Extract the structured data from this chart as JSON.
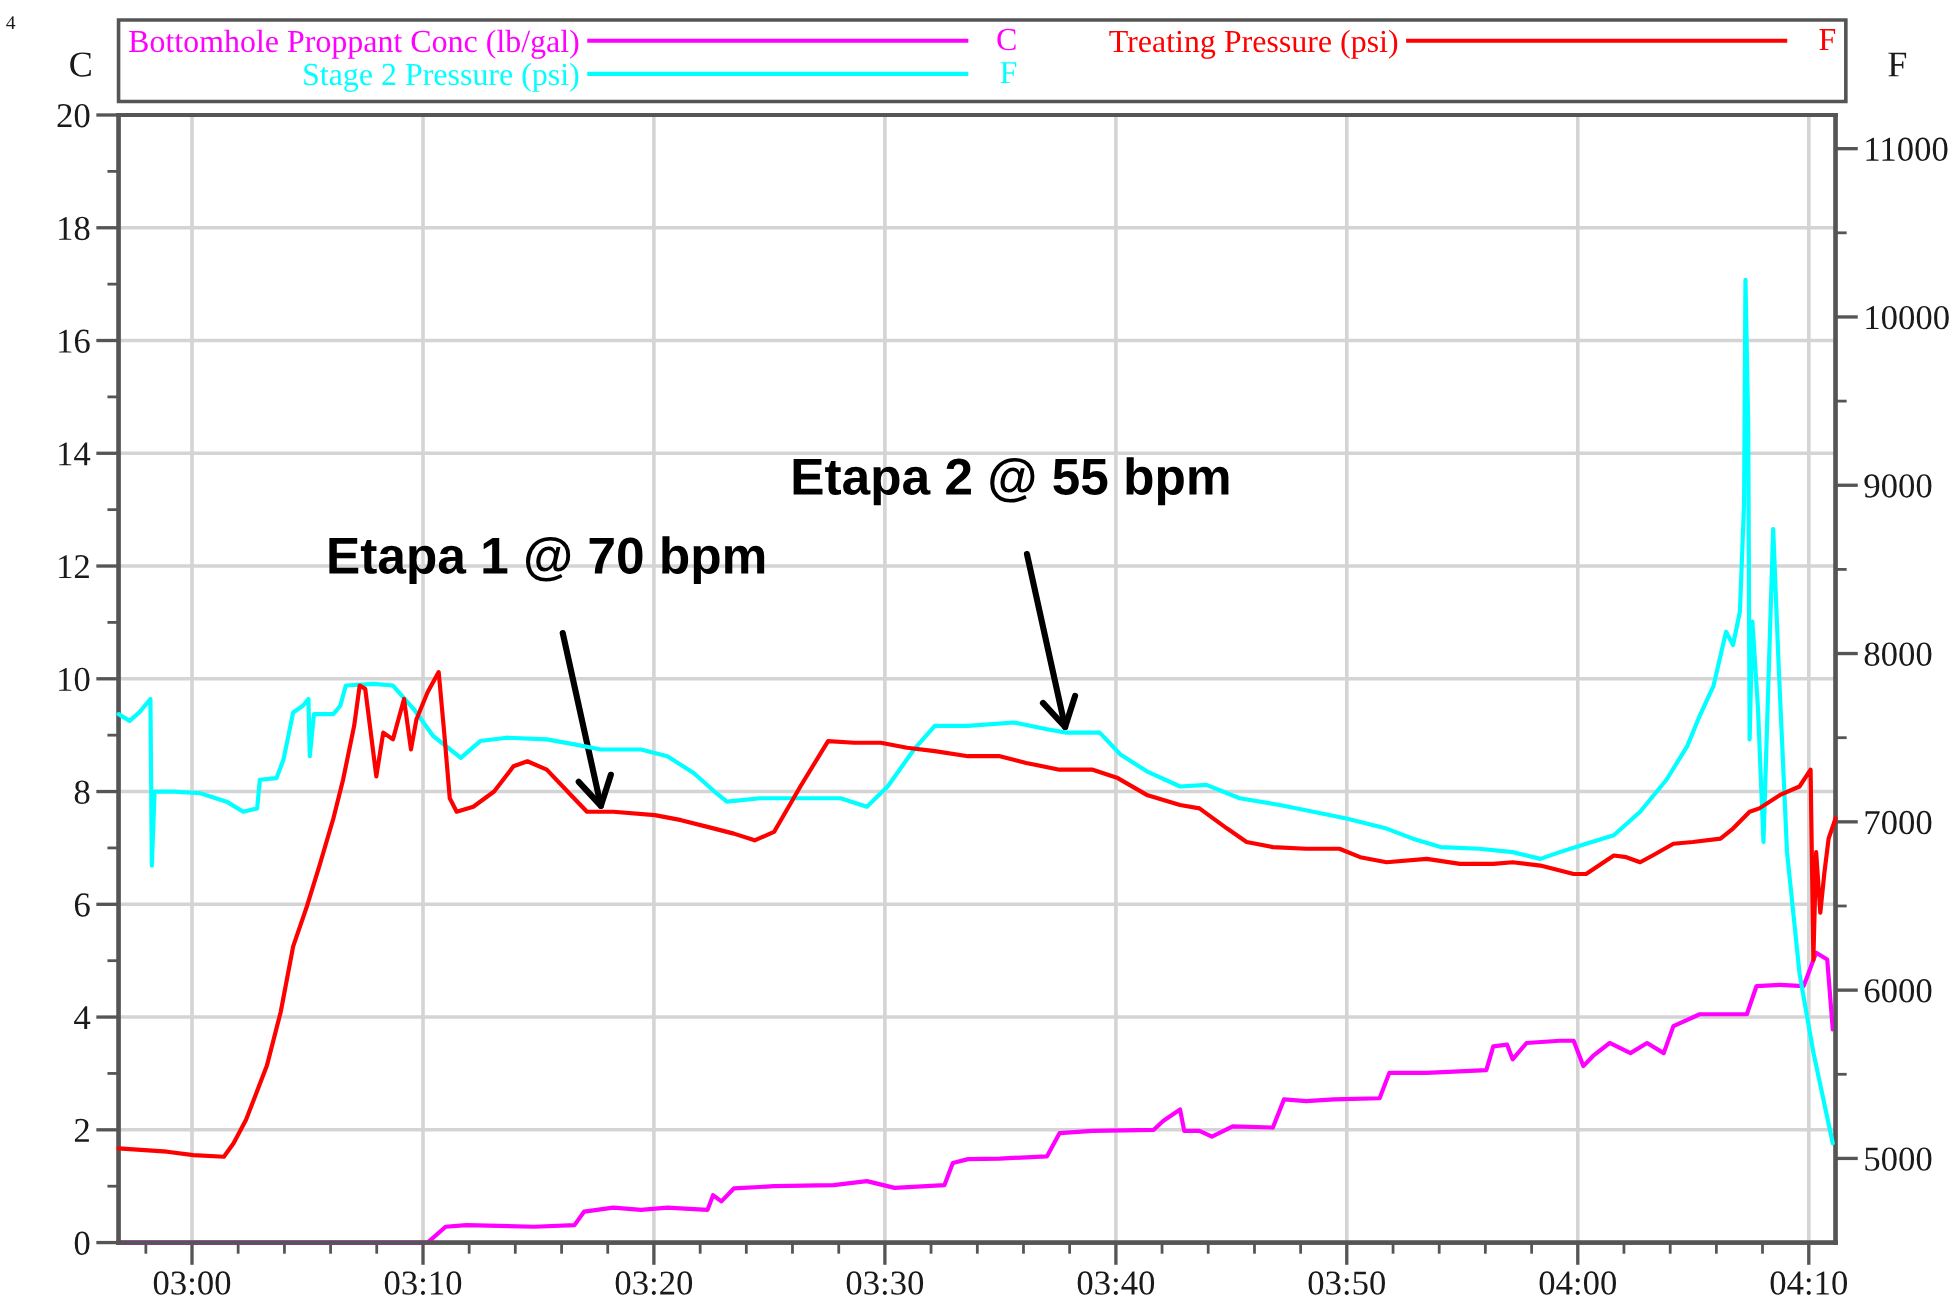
{
  "chart_data": {
    "type": "line",
    "ylabel": "C",
    "y2label": "F",
    "xlim": [
      2.947,
      4.186
    ],
    "xticks": [
      {
        "value": 2.9667,
        "label": null
      },
      {
        "value": 3.0,
        "label": "03:00"
      },
      {
        "value": 3.0333,
        "label": null
      },
      {
        "value": 3.0667,
        "label": null
      },
      {
        "value": 3.1,
        "label": null
      },
      {
        "value": 3.1333,
        "label": null
      },
      {
        "value": 3.1667,
        "label": "03:10"
      },
      {
        "value": 3.2,
        "label": null
      },
      {
        "value": 3.2333,
        "label": null
      },
      {
        "value": 3.2667,
        "label": null
      },
      {
        "value": 3.3,
        "label": null
      },
      {
        "value": 3.3333,
        "label": "03:20"
      },
      {
        "value": 3.3667,
        "label": null
      },
      {
        "value": 3.4,
        "label": null
      },
      {
        "value": 3.4333,
        "label": null
      },
      {
        "value": 3.4667,
        "label": null
      },
      {
        "value": 3.5,
        "label": "03:30"
      },
      {
        "value": 3.5333,
        "label": null
      },
      {
        "value": 3.5667,
        "label": null
      },
      {
        "value": 3.6,
        "label": null
      },
      {
        "value": 3.6333,
        "label": null
      },
      {
        "value": 3.6667,
        "label": "03:40"
      },
      {
        "value": 3.7,
        "label": null
      },
      {
        "value": 3.7333,
        "label": null
      },
      {
        "value": 3.7667,
        "label": null
      },
      {
        "value": 3.8,
        "label": null
      },
      {
        "value": 3.8333,
        "label": "03:50"
      },
      {
        "value": 3.8667,
        "label": null
      },
      {
        "value": 3.9,
        "label": null
      },
      {
        "value": 3.9333,
        "label": null
      },
      {
        "value": 3.9667,
        "label": null
      },
      {
        "value": 4.0,
        "label": "04:00"
      },
      {
        "value": 4.0333,
        "label": null
      },
      {
        "value": 4.0667,
        "label": null
      },
      {
        "value": 4.1,
        "label": null
      },
      {
        "value": 4.1333,
        "label": null
      },
      {
        "value": 4.1667,
        "label": "04:10"
      }
    ],
    "ylim": [
      0,
      20
    ],
    "yticks": [
      0,
      {
        "value": 1,
        "label": null
      },
      2,
      {
        "value": 3,
        "label": null
      },
      4,
      {
        "value": 5,
        "label": null
      },
      6,
      {
        "value": 7,
        "label": null
      },
      8,
      {
        "value": 9,
        "label": null
      },
      10,
      {
        "value": 11,
        "label": null
      },
      12,
      {
        "value": 13,
        "label": null
      },
      14,
      {
        "value": 15,
        "label": null
      },
      16,
      {
        "value": 17,
        "label": null
      },
      18,
      {
        "value": 19,
        "label": null
      },
      20
    ],
    "y2lim": [
      4500,
      11200
    ],
    "y2ticks": [
      5000,
      {
        "value": 5500,
        "label": null
      },
      6000,
      {
        "value": 6500,
        "label": null
      },
      7000,
      {
        "value": 7500,
        "label": null
      },
      8000,
      {
        "value": 8500,
        "label": null
      },
      9000,
      {
        "value": 9500,
        "label": null
      },
      10000,
      {
        "value": 10500,
        "label": null
      },
      11000
    ],
    "grid": true,
    "legend": "top",
    "series": [
      {
        "name": "Bottomhole Proppant Conc (lb/gal)",
        "color": "#ff00ff",
        "x": [
          2.947,
          3.17,
          3.183,
          3.198,
          3.247,
          3.276,
          3.283,
          3.304,
          3.324,
          3.343,
          3.372,
          3.376,
          3.382,
          3.391,
          3.42,
          3.463,
          3.487,
          3.507,
          3.543,
          3.549,
          3.56,
          3.583,
          3.617,
          3.626,
          3.65,
          3.694,
          3.701,
          3.713,
          3.716,
          3.727,
          3.736,
          3.751,
          3.78,
          3.788,
          3.804,
          3.824,
          3.857,
          3.864,
          3.891,
          3.934,
          3.939,
          3.949,
          3.953,
          3.963,
          3.987,
          3.997,
          4.004,
          4.011,
          4.023,
          4.038,
          4.05,
          4.062,
          4.069,
          4.088,
          4.122,
          4.129,
          4.146,
          4.163,
          4.172,
          4.18,
          4.184
        ],
        "values": [
          0,
          0,
          0.28,
          0.31,
          0.28,
          0.31,
          0.55,
          0.62,
          0.58,
          0.62,
          0.58,
          0.84,
          0.73,
          0.96,
          1.0,
          1.02,
          1.09,
          0.97,
          1.02,
          1.41,
          1.48,
          1.49,
          1.53,
          1.94,
          1.98,
          2.0,
          2.16,
          2.36,
          1.98,
          1.98,
          1.88,
          2.06,
          2.04,
          2.54,
          2.51,
          2.54,
          2.56,
          3.01,
          3.01,
          3.06,
          3.48,
          3.51,
          3.25,
          3.54,
          3.58,
          3.58,
          3.13,
          3.31,
          3.54,
          3.36,
          3.54,
          3.36,
          3.84,
          4.05,
          4.05,
          4.55,
          4.57,
          4.55,
          5.14,
          5.02,
          3.78
        ]
      },
      {
        "name": "Stage 2 Pressure (psi)",
        "color": "#00ffff",
        "axis": "y2",
        "x": [
          2.947,
          2.955,
          2.962,
          2.97,
          2.971,
          2.973,
          2.987,
          3.006,
          3.025,
          3.037,
          3.047,
          3.049,
          3.061,
          3.066,
          3.073,
          3.08,
          3.084,
          3.085,
          3.088,
          3.102,
          3.107,
          3.111,
          3.131,
          3.145,
          3.16,
          3.174,
          3.194,
          3.208,
          3.227,
          3.256,
          3.276,
          3.295,
          3.324,
          3.343,
          3.362,
          3.377,
          3.386,
          3.41,
          3.439,
          3.468,
          3.487,
          3.502,
          3.521,
          3.536,
          3.56,
          3.593,
          3.617,
          3.631,
          3.655,
          3.67,
          3.689,
          3.713,
          3.732,
          3.756,
          3.785,
          3.809,
          3.833,
          3.862,
          3.881,
          3.901,
          3.929,
          3.953,
          3.973,
          3.987,
          4.006,
          4.026,
          4.045,
          4.064,
          4.079,
          4.088,
          4.098,
          4.107,
          4.112,
          4.117,
          4.12,
          4.121,
          4.123,
          4.124,
          4.126,
          4.13,
          4.134,
          4.137,
          4.141,
          4.145,
          4.151,
          4.16,
          4.17,
          4.184
        ],
        "values": [
          7640,
          7600,
          7650,
          7730,
          6740,
          7180,
          7180,
          7170,
          7120,
          7060,
          7080,
          7250,
          7260,
          7370,
          7650,
          7690,
          7730,
          7390,
          7640,
          7640,
          7690,
          7810,
          7820,
          7810,
          7670,
          7510,
          7380,
          7480,
          7500,
          7490,
          7460,
          7430,
          7430,
          7390,
          7290,
          7180,
          7120,
          7140,
          7140,
          7140,
          7090,
          7210,
          7430,
          7570,
          7570,
          7590,
          7550,
          7530,
          7530,
          7400,
          7300,
          7210,
          7220,
          7140,
          7100,
          7060,
          7020,
          6960,
          6900,
          6850,
          6840,
          6820,
          6780,
          6820,
          6870,
          6920,
          7060,
          7250,
          7450,
          7630,
          7810,
          8130,
          8050,
          8250,
          8890,
          10220,
          9360,
          7490,
          8190,
          7680,
          6880,
          7680,
          8740,
          7920,
          6820,
          6100,
          5630,
          5090
        ]
      },
      {
        "name": "Treating Pressure (psi)",
        "color": "#ff0000",
        "axis": "y2",
        "x": [
          2.947,
          2.982,
          3.001,
          3.023,
          3.03,
          3.039,
          3.054,
          3.064,
          3.073,
          3.083,
          3.092,
          3.102,
          3.109,
          3.117,
          3.121,
          3.125,
          3.133,
          3.138,
          3.145,
          3.153,
          3.158,
          3.162,
          3.17,
          3.178,
          3.182,
          3.186,
          3.191,
          3.203,
          3.218,
          3.232,
          3.242,
          3.256,
          3.271,
          3.285,
          3.304,
          3.334,
          3.353,
          3.372,
          3.391,
          3.406,
          3.42,
          3.439,
          3.459,
          3.478,
          3.497,
          3.516,
          3.536,
          3.56,
          3.583,
          3.602,
          3.626,
          3.65,
          3.668,
          3.689,
          3.713,
          3.727,
          3.747,
          3.761,
          3.78,
          3.804,
          3.828,
          3.843,
          3.862,
          3.891,
          3.915,
          3.939,
          3.953,
          3.973,
          3.997,
          4.006,
          4.026,
          4.035,
          4.045,
          4.054,
          4.069,
          4.083,
          4.103,
          4.112,
          4.124,
          4.131,
          4.146,
          4.16,
          4.168,
          4.17,
          4.172,
          4.175,
          4.178,
          4.181,
          4.186
        ],
        "values": [
          5060,
          5040,
          5020,
          5010,
          5090,
          5230,
          5550,
          5870,
          6260,
          6500,
          6740,
          7020,
          7250,
          7570,
          7810,
          7790,
          7270,
          7530,
          7490,
          7730,
          7430,
          7610,
          7770,
          7890,
          7530,
          7140,
          7060,
          7090,
          7180,
          7330,
          7360,
          7310,
          7180,
          7060,
          7060,
          7040,
          7010,
          6970,
          6930,
          6890,
          6940,
          7210,
          7480,
          7470,
          7470,
          7440,
          7420,
          7390,
          7390,
          7350,
          7310,
          7310,
          7260,
          7160,
          7100,
          7080,
          6960,
          6880,
          6850,
          6840,
          6840,
          6790,
          6760,
          6780,
          6750,
          6750,
          6760,
          6740,
          6690,
          6690,
          6800,
          6790,
          6760,
          6800,
          6870,
          6880,
          6900,
          6960,
          7060,
          7080,
          7160,
          7210,
          7310,
          6180,
          6820,
          6460,
          6700,
          6900,
          7020
        ]
      }
    ],
    "annotations": [
      "4",
      {
        "text": "Etapa 1 @ 70 bpm",
        "x": 3.296,
        "y": 7.64
      },
      {
        "text": "Etapa 2 @ 55 bpm",
        "x": 3.631,
        "y": 9.04
      }
    ]
  }
}
